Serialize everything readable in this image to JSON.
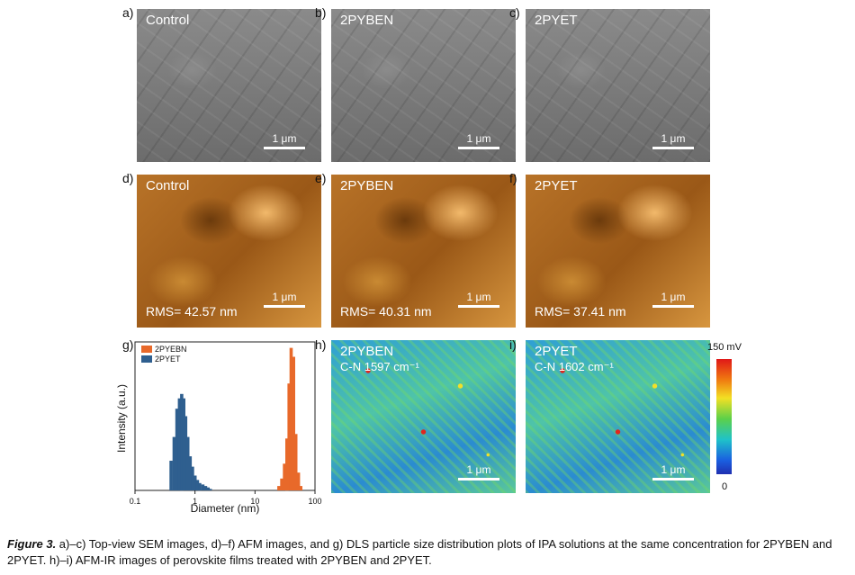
{
  "panels": {
    "a": {
      "label": "a)",
      "title": "Control",
      "scale": "1 μm"
    },
    "b": {
      "label": "b)",
      "title": "2PYBEN",
      "scale": "1 μm"
    },
    "c": {
      "label": "c)",
      "title": "2PYET",
      "scale": "1 μm"
    },
    "d": {
      "label": "d)",
      "title": "Control",
      "scale": "1 μm",
      "rms": "RMS= 42.57 nm"
    },
    "e": {
      "label": "e)",
      "title": "2PYBEN",
      "scale": "1 μm",
      "rms": "RMS= 40.31 nm"
    },
    "f": {
      "label": "f)",
      "title": "2PYET",
      "scale": "1 μm",
      "rms": "RMS= 37.41 nm"
    },
    "g": {
      "label": "g)"
    },
    "h": {
      "label": "h)",
      "title": "2PYBEN",
      "sub": "C-N 1597 cm⁻¹",
      "scale": "1 μm"
    },
    "i": {
      "label": "i)",
      "title": "2PYET",
      "sub": "C-N 1602 cm⁻¹",
      "scale": "1 μm"
    }
  },
  "colorbar": {
    "max": "150 mV",
    "min": "0"
  },
  "chart_data": {
    "type": "bar",
    "xscale": "log",
    "xlabel": "Diameter (nm)",
    "ylabel": "Intensity (a.u.)",
    "xlim": [
      0.1,
      100
    ],
    "xticks": [
      "0.1",
      "1",
      "10",
      "100"
    ],
    "ylim": [
      0,
      1
    ],
    "legend": "top-left",
    "series": [
      {
        "name": "2PYEBN",
        "color": "#e8692a",
        "x": [
          25,
          28,
          31,
          34,
          37,
          40,
          44,
          48,
          53,
          58
        ],
        "values": [
          0.03,
          0.08,
          0.18,
          0.35,
          0.72,
          0.96,
          0.9,
          0.38,
          0.12,
          0.03
        ]
      },
      {
        "name": "2PYET",
        "color": "#2f5f8f",
        "x": [
          0.4,
          0.45,
          0.5,
          0.55,
          0.6,
          0.65,
          0.7,
          0.76,
          0.83,
          0.91,
          1.0,
          1.1,
          1.2,
          1.35,
          1.5,
          1.65,
          1.8
        ],
        "values": [
          0.2,
          0.36,
          0.55,
          0.62,
          0.65,
          0.62,
          0.5,
          0.36,
          0.23,
          0.16,
          0.1,
          0.07,
          0.05,
          0.04,
          0.03,
          0.02,
          0.01
        ]
      }
    ]
  },
  "caption": {
    "figure": "Figure 3.",
    "text": " a)–c) Top-view SEM images, d)–f) AFM images, and g) DLS particle size distribution plots of IPA solutions at the same concentration for 2PYBEN and 2PYET. h)–i) AFM-IR images of perovskite films treated with 2PYBEN and 2PYET."
  }
}
